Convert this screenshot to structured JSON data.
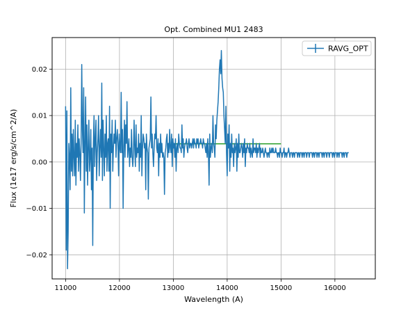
{
  "chart_data": {
    "type": "line",
    "title": "Opt. Combined MU1 2483",
    "xlabel": "Wavelength (A)",
    "ylabel": "Flux (1e17 erg/s/cm^2/A)",
    "xlim": [
      10750,
      16750
    ],
    "ylim": [
      -0.0252,
      0.0268
    ],
    "xticks": [
      11000,
      12000,
      13000,
      14000,
      15000,
      16000
    ],
    "xtick_labels": [
      "11000",
      "12000",
      "13000",
      "14000",
      "15000",
      "16000"
    ],
    "yticks": [
      -0.02,
      -0.01,
      0.0,
      0.01,
      0.02
    ],
    "ytick_labels": [
      "−0.02",
      "−0.01",
      "0.00",
      "0.01",
      "0.02"
    ],
    "grid": true,
    "legend": {
      "position": "top-right"
    },
    "colors": {
      "series": "#1f77b4",
      "fit": "#2ca02c"
    },
    "series": [
      {
        "name": "RAVG_OPT",
        "kind": "errorbar-line",
        "x_start": 11000,
        "x_step": 12,
        "y": [
          0.012,
          -0.019,
          0.011,
          -0.023,
          -0.015,
          0.004,
          0.001,
          -0.006,
          0.016,
          -0.002,
          0.006,
          -0.003,
          0.007,
          0.001,
          -0.003,
          0.009,
          -0.005,
          0.004,
          0.001,
          0.008,
          -0.002,
          0.005,
          0.002,
          -0.004,
          0.004,
          0.021,
          0.007,
          0.002,
          0.016,
          -0.011,
          0.004,
          0.014,
          -0.002,
          0.008,
          -0.005,
          0.003,
          0.009,
          -0.002,
          0.001,
          0.007,
          -0.006,
          0.003,
          -0.018,
          0.004,
          0.01,
          -0.001,
          0.005,
          0.009,
          -0.004,
          0.002,
          0.005,
          0.01,
          -0.003,
          0.003,
          0.007,
          0.001,
          0.017,
          -0.004,
          0.009,
          0.003,
          -0.003,
          0.006,
          0.001,
          0.01,
          -0.002,
          0.004,
          0.005,
          -0.002,
          0.012,
          -0.01,
          0.006,
          0.002,
          0.009,
          -0.002,
          0.003,
          0.006,
          0.004,
          0.009,
          0.001,
          0.005,
          0.007,
          0.004,
          -0.003,
          0.006,
          0.003,
          0.002,
          0.015,
          0.002,
          0.007,
          -0.01,
          0.003,
          0.009,
          0.001,
          0.008,
          0.004,
          0.013,
          0.001,
          0.003,
          0.005,
          -0.001,
          0.003,
          0.001,
          0.007,
          0.001,
          -0.001,
          0.002,
          0.009,
          0.003,
          -0.001,
          0.008,
          0.001,
          0.003,
          0.002,
          0.006,
          -0.002,
          0.004,
          0.001,
          0.01,
          -0.003,
          0.003,
          0.006,
          0.005,
          0.003,
          0.004,
          -0.006,
          0.006,
          0.003,
          0.002,
          -0.008,
          0.003,
          0.004,
          0.005,
          0.014,
          0.003,
          0.006,
          0.002,
          -0.001,
          0.003,
          0.006,
          0.005,
          0.01,
          0.003,
          0.002,
          0.005,
          -0.003,
          0.004,
          0.001,
          0.006,
          0.002,
          0.004,
          0.001,
          0.002,
          0.001,
          -0.007,
          0.002,
          0.003,
          0.005,
          0.006,
          0.001,
          0.004,
          0.002,
          0.007,
          0.003,
          0.002,
          0.006,
          -0.001,
          0.005,
          0.003,
          0.004,
          0.001,
          0.005,
          -0.002,
          0.003,
          0.004,
          0.002,
          0.006,
          0.004,
          0.003,
          0.003,
          0.002,
          0.008,
          0.003,
          0.005,
          0.001,
          0.003,
          0.004,
          0.004,
          0.005,
          0.003,
          0.002,
          0.004,
          0.005,
          0.003,
          0.004,
          0.004,
          0.003,
          0.004,
          0.005,
          0.003,
          0.005,
          0.004,
          0.004,
          0.003,
          0.005,
          0.004,
          0.005,
          0.003,
          0.004,
          0.004,
          0.005,
          0.004,
          0.004,
          0.003,
          0.005,
          0.004,
          0.004,
          0.003,
          0.002,
          0.004,
          0.001,
          0.005,
          0.002,
          -0.005,
          0.006,
          0.001,
          0.003,
          0.004,
          0.002,
          0.01,
          0.004,
          0.003,
          0.001,
          0.008,
          0.005,
          0.009,
          0.011,
          0.013,
          0.016,
          0.02,
          0.022,
          0.019,
          0.024,
          0.018,
          0.016,
          0.015,
          0.01,
          0.007,
          0.004,
          0.012,
          0.002,
          -0.003,
          0.006,
          0.003,
          0.008,
          -0.002,
          0.004,
          0.001,
          0.006,
          0.002,
          0.003,
          -0.001,
          0.004,
          0.002,
          0.003,
          0.005,
          -0.002,
          0.004,
          0.001,
          0.006,
          0.002,
          0.002,
          0.003,
          0.004,
          0.003,
          0.001,
          0.004,
          0.002,
          0.005,
          -0.001,
          0.003,
          0.002,
          0.004,
          0.003,
          0.003,
          0.002,
          0.004,
          0.001,
          0.003,
          0.002,
          0.001,
          0.005,
          0.002,
          0.003,
          0.003,
          0.002,
          0.004,
          0.001,
          0.003,
          0.002,
          0.003,
          0.004,
          0.001,
          0.003,
          0.002,
          0.002,
          0.003,
          0.002,
          0.001,
          0.002,
          0.003,
          0.002,
          0.002,
          0.001,
          0.002,
          0.002,
          0.001,
          0.003,
          0.002,
          0.002,
          0.003,
          0.002,
          0.003,
          0.002,
          0.002,
          0.002,
          0.003,
          0.002,
          0.002,
          0.001,
          0.002,
          0.002,
          0.001,
          0.003,
          0.002,
          0.002,
          0.001,
          0.002,
          0.002,
          0.003,
          0.001,
          0.002,
          0.002,
          0.001,
          0.002,
          0.002,
          0.003,
          0.002,
          0.001,
          0.002,
          0.002,
          0.002,
          0.001,
          0.002,
          0.002,
          0.001,
          0.002,
          0.002,
          0.002,
          0.002,
          0.001,
          0.002,
          0.002,
          0.001,
          0.002,
          0.002,
          0.002,
          0.001,
          0.002,
          0.002,
          0.001,
          0.002,
          0.002,
          0.002,
          0.001,
          0.002,
          0.002,
          0.002,
          0.001,
          0.002,
          0.002,
          0.002,
          0.002,
          0.001,
          0.002,
          0.002,
          0.001,
          0.002,
          0.002,
          0.002,
          0.001,
          0.002,
          0.002,
          0.001,
          0.002,
          0.002,
          0.002,
          0.002,
          0.001,
          0.002,
          0.002,
          0.001,
          0.002,
          0.002,
          0.002,
          0.001,
          0.002,
          0.002,
          0.002,
          0.001,
          0.002,
          0.002,
          0.002,
          0.002,
          0.001,
          0.002,
          0.002,
          0.001,
          0.002,
          0.002,
          0.002,
          0.001,
          0.002,
          0.002,
          0.001,
          0.002,
          0.002,
          0.002,
          0.002,
          0.001,
          0.002,
          0.002,
          0.001,
          0.002,
          0.002,
          0.002,
          0.001,
          0.002,
          0.002,
          0.002
        ]
      },
      {
        "kind": "fit-line",
        "points": [
          [
            13000,
            0.0039
          ],
          [
            15000,
            0.0039
          ]
        ]
      }
    ]
  }
}
